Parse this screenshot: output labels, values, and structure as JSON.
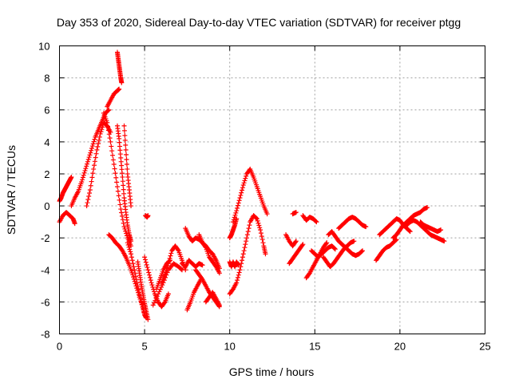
{
  "chart_data": {
    "type": "scatter",
    "title": "Day 353 of 2020, Sidereal Day-to-day VTEC variation (SDTVAR) for receiver ptgg",
    "xlabel": "GPS time / hours",
    "ylabel": "SDTVAR / TECUs",
    "xlim": [
      0,
      25
    ],
    "ylim": [
      -8,
      10
    ],
    "xticks": [
      "0",
      "5",
      "10",
      "15",
      "20",
      "25"
    ],
    "yticks": [
      "-8",
      "-6",
      "-4",
      "-2",
      "0",
      "2",
      "4",
      "6",
      "8",
      "10"
    ],
    "grid": true,
    "marker": "+",
    "color": "#ff0000",
    "series": [
      {
        "name": "s1",
        "x": [
          0.0,
          0.1,
          0.2,
          0.3,
          0.4,
          0.5,
          0.6,
          0.7
        ],
        "y": [
          0.3,
          0.5,
          0.8,
          1.0,
          1.2,
          1.4,
          1.6,
          1.8
        ]
      },
      {
        "name": "s2",
        "x": [
          0.0,
          0.2,
          0.4,
          0.6,
          0.8,
          0.9
        ],
        "y": [
          -1.0,
          -0.6,
          -0.4,
          -0.6,
          -0.8,
          -1.1
        ]
      },
      {
        "name": "s3",
        "x": [
          0.7,
          0.9,
          1.1,
          1.3,
          1.5,
          1.7,
          1.9,
          2.1,
          2.3,
          2.5,
          2.7,
          2.9
        ],
        "y": [
          0.0,
          0.5,
          0.9,
          1.5,
          2.2,
          2.9,
          3.6,
          4.3,
          4.8,
          5.3,
          5.8,
          6.0
        ]
      },
      {
        "name": "s4",
        "x": [
          1.6,
          1.8,
          2.0,
          2.2,
          2.4,
          2.6,
          2.8,
          3.0
        ],
        "y": [
          0.0,
          1.0,
          2.3,
          3.5,
          4.5,
          5.2,
          5.0,
          4.6
        ]
      },
      {
        "name": "s5",
        "x": [
          2.8,
          3.0,
          3.2,
          3.4,
          3.5
        ],
        "y": [
          6.2,
          6.6,
          7.0,
          7.2,
          7.3
        ]
      },
      {
        "name": "s6",
        "x": [
          3.4,
          3.45,
          3.5,
          3.55,
          3.6,
          3.65
        ],
        "y": [
          9.6,
          9.2,
          8.8,
          8.4,
          8.0,
          7.7
        ]
      },
      {
        "name": "s7",
        "x": [
          2.6,
          2.8,
          3.0,
          3.2,
          3.4,
          3.6,
          3.8,
          4.0,
          4.2
        ],
        "y": [
          5.8,
          5.2,
          4.0,
          2.6,
          1.2,
          -0.2,
          -1.3,
          -2.0,
          -2.5
        ]
      },
      {
        "name": "s8",
        "x": [
          3.4,
          3.5,
          3.6,
          3.7,
          3.8,
          3.9,
          4.0,
          4.1,
          4.2
        ],
        "y": [
          5.0,
          4.2,
          3.0,
          1.8,
          0.5,
          -0.4,
          -1.2,
          -1.8,
          -2.2
        ]
      },
      {
        "name": "s9",
        "x": [
          3.8,
          3.9,
          4.0,
          4.1,
          4.2
        ],
        "y": [
          5.0,
          3.5,
          2.0,
          1.0,
          0.0
        ]
      },
      {
        "name": "s10",
        "x": [
          2.9,
          3.1,
          3.3,
          3.5,
          3.7,
          3.9,
          4.1,
          4.3,
          4.5,
          4.7,
          4.9,
          5.0
        ],
        "y": [
          -1.8,
          -2.0,
          -2.3,
          -2.5,
          -2.8,
          -3.2,
          -3.7,
          -4.3,
          -5.0,
          -5.7,
          -6.3,
          -6.8
        ]
      },
      {
        "name": "s11",
        "x": [
          4.0,
          4.2,
          4.4,
          4.6,
          4.8,
          5.0,
          5.1
        ],
        "y": [
          -2.3,
          -3.0,
          -4.0,
          -5.0,
          -6.0,
          -6.8,
          -7.0
        ]
      },
      {
        "name": "s12",
        "x": [
          4.6,
          4.7,
          4.8,
          4.9,
          5.0,
          5.1,
          5.2
        ],
        "y": [
          -3.5,
          -4.2,
          -4.9,
          -5.5,
          -6.1,
          -6.6,
          -7.1
        ]
      },
      {
        "name": "s13",
        "x": [
          5.05,
          5.15,
          5.2
        ],
        "y": [
          -0.6,
          -0.7,
          -0.6
        ]
      },
      {
        "name": "s14",
        "x": [
          5.0,
          5.2,
          5.4,
          5.6,
          5.8,
          6.0,
          6.2,
          6.4
        ],
        "y": [
          -3.2,
          -4.0,
          -4.8,
          -5.5,
          -6.0,
          -6.3,
          -6.0,
          -5.5
        ]
      },
      {
        "name": "s15",
        "x": [
          5.5,
          5.8,
          6.1,
          6.4,
          6.7,
          7.0,
          7.2
        ],
        "y": [
          -6.2,
          -5.5,
          -4.8,
          -4.0,
          -3.6,
          -3.8,
          -4.0
        ]
      },
      {
        "name": "s16",
        "x": [
          6.0,
          6.2,
          6.4,
          6.6,
          6.8,
          7.0,
          7.2,
          7.4
        ],
        "y": [
          -4.8,
          -4.3,
          -3.6,
          -2.8,
          -2.5,
          -2.8,
          -3.4,
          -4.0
        ]
      },
      {
        "name": "s17",
        "x": [
          5.7,
          5.9,
          6.1,
          6.3,
          6.5
        ],
        "y": [
          -5.2,
          -4.6,
          -4.0,
          -3.6,
          -3.4
        ]
      },
      {
        "name": "s18",
        "x": [
          7.2,
          7.4,
          7.6,
          7.8,
          8.0,
          8.2,
          8.4
        ],
        "y": [
          -3.6,
          -3.8,
          -3.4,
          -3.6,
          -3.8,
          -3.6,
          -3.7
        ]
      },
      {
        "name": "s19",
        "x": [
          7.4,
          7.6,
          7.8,
          8.0,
          8.2,
          8.4,
          8.6,
          8.8,
          9.0,
          9.2,
          9.4
        ],
        "y": [
          -1.4,
          -1.9,
          -2.2,
          -2.0,
          -2.1,
          -2.3,
          -2.5,
          -2.8,
          -3.0,
          -3.4,
          -3.9
        ]
      },
      {
        "name": "s20",
        "x": [
          8.2,
          8.4,
          8.6,
          8.8,
          9.0,
          9.2,
          9.4
        ],
        "y": [
          -1.8,
          -2.3,
          -2.6,
          -3.2,
          -3.5,
          -3.8,
          -4.2
        ]
      },
      {
        "name": "s21",
        "x": [
          7.5,
          7.7,
          7.9,
          8.1,
          8.3
        ],
        "y": [
          -6.5,
          -6.0,
          -5.4,
          -5.0,
          -4.6
        ]
      },
      {
        "name": "s22",
        "x": [
          8.0,
          8.2,
          8.4,
          8.6,
          8.8,
          9.0,
          9.2,
          9.4
        ],
        "y": [
          -4.0,
          -4.3,
          -4.6,
          -5.0,
          -5.4,
          -5.7,
          -6.0,
          -6.3
        ]
      },
      {
        "name": "s23",
        "x": [
          8.6,
          8.8,
          9.0,
          9.2,
          9.4
        ],
        "y": [
          -6.0,
          -5.7,
          -5.4,
          -5.8,
          -6.2
        ]
      },
      {
        "name": "s24",
        "x": [
          10.0,
          10.1,
          10.2,
          10.3,
          10.4
        ],
        "y": [
          -2.0,
          -1.8,
          -1.5,
          -1.2,
          -0.8
        ]
      },
      {
        "name": "s25",
        "x": [
          10.0,
          10.1,
          10.2,
          10.3,
          10.4,
          10.5
        ],
        "y": [
          -3.5,
          -3.8,
          -3.5,
          -3.8,
          -3.5,
          -3.7
        ]
      },
      {
        "name": "s26",
        "x": [
          10.2,
          10.4,
          10.6,
          10.8,
          11.0,
          11.2,
          11.4,
          11.6,
          11.8,
          12.0,
          12.2
        ],
        "y": [
          -1.0,
          -0.3,
          0.5,
          1.3,
          2.0,
          2.3,
          1.8,
          1.2,
          0.6,
          0.0,
          -0.5
        ]
      },
      {
        "name": "s27",
        "x": [
          10.0,
          10.2,
          10.4,
          10.6,
          10.8,
          11.0,
          11.2,
          11.4,
          11.6,
          11.8,
          12.0,
          12.1
        ],
        "y": [
          -5.5,
          -5.2,
          -4.8,
          -4.0,
          -3.0,
          -2.0,
          -1.0,
          -0.6,
          -0.8,
          -1.5,
          -2.5,
          -3.0
        ]
      },
      {
        "name": "s28",
        "x": [
          13.3,
          13.5,
          13.7,
          13.9
        ],
        "y": [
          -1.8,
          -2.2,
          -2.5,
          -2.2
        ]
      },
      {
        "name": "s29",
        "x": [
          13.7,
          13.9
        ],
        "y": [
          -0.5,
          -0.4
        ]
      },
      {
        "name": "s30",
        "x": [
          14.3,
          14.5,
          14.7,
          14.9,
          15.1
        ],
        "y": [
          -0.6,
          -0.9,
          -0.7,
          -0.8,
          -1.0
        ]
      },
      {
        "name": "s31",
        "x": [
          13.5,
          13.7,
          13.9,
          14.1,
          14.3
        ],
        "y": [
          -3.6,
          -3.3,
          -3.0,
          -2.7,
          -2.4
        ]
      },
      {
        "name": "s32",
        "x": [
          14.5,
          14.7,
          14.9,
          15.1,
          15.3,
          15.5,
          15.7
        ],
        "y": [
          -4.5,
          -4.2,
          -3.8,
          -3.4,
          -3.0,
          -2.6,
          -2.3
        ]
      },
      {
        "name": "s33",
        "x": [
          15.5,
          15.7,
          15.9,
          16.1,
          16.3,
          16.5,
          16.7,
          16.9,
          17.1,
          17.3
        ],
        "y": [
          -3.2,
          -3.5,
          -3.8,
          -3.6,
          -3.3,
          -3.0,
          -2.7,
          -2.5,
          -2.3,
          -2.2
        ]
      },
      {
        "name": "s34",
        "x": [
          15.8,
          16.0,
          16.2,
          16.4,
          16.6,
          16.8,
          17.0,
          17.2,
          17.4,
          17.6,
          17.8
        ],
        "y": [
          -1.8,
          -1.6,
          -1.9,
          -2.2,
          -2.4,
          -2.6,
          -2.8,
          -3.0,
          -3.1,
          -3.0,
          -2.8
        ]
      },
      {
        "name": "s35",
        "x": [
          14.8,
          15.0,
          15.2,
          15.4,
          15.6,
          15.8,
          16.0,
          16.2
        ],
        "y": [
          -2.8,
          -3.0,
          -3.2,
          -3.0,
          -2.8,
          -2.6,
          -2.5,
          -2.7
        ]
      },
      {
        "name": "s36",
        "x": [
          16.4,
          16.6,
          16.8,
          17.0,
          17.2,
          17.4,
          17.6,
          17.8,
          18.0
        ],
        "y": [
          -1.4,
          -1.2,
          -1.0,
          -0.8,
          -0.7,
          -0.8,
          -1.0,
          -1.2,
          -1.3
        ]
      },
      {
        "name": "s37",
        "x": [
          18.6,
          18.8,
          19.0,
          19.2,
          19.4,
          19.6,
          19.8
        ],
        "y": [
          -3.4,
          -3.1,
          -2.8,
          -2.6,
          -2.5,
          -2.3,
          -2.1
        ]
      },
      {
        "name": "s38",
        "x": [
          18.8,
          19.0,
          19.2,
          19.4,
          19.6,
          19.8,
          20.0,
          20.2,
          20.4,
          20.6
        ],
        "y": [
          -1.8,
          -1.6,
          -1.4,
          -1.2,
          -1.0,
          -0.8,
          -0.9,
          -1.2,
          -1.4,
          -1.6
        ]
      },
      {
        "name": "s39",
        "x": [
          19.6,
          19.8,
          20.0,
          20.2,
          20.4,
          20.6,
          20.8,
          21.0,
          21.2,
          21.4,
          21.6
        ],
        "y": [
          -2.0,
          -1.8,
          -1.5,
          -1.2,
          -1.0,
          -0.8,
          -0.6,
          -0.5,
          -0.4,
          -0.2,
          -0.1
        ]
      },
      {
        "name": "s40",
        "x": [
          20.4,
          20.6,
          20.8,
          21.0,
          21.2,
          21.4,
          21.6,
          21.8,
          22.0,
          22.2,
          22.4,
          22.6
        ],
        "y": [
          -1.2,
          -1.0,
          -0.9,
          -1.0,
          -1.2,
          -1.4,
          -1.6,
          -1.8,
          -1.9,
          -2.0,
          -2.1,
          -2.2
        ]
      },
      {
        "name": "s41",
        "x": [
          21.2,
          21.4,
          21.6,
          21.8,
          22.0,
          22.2,
          22.4
        ],
        "y": [
          -1.0,
          -1.2,
          -1.3,
          -1.4,
          -1.5,
          -1.6,
          -1.5
        ]
      }
    ]
  }
}
